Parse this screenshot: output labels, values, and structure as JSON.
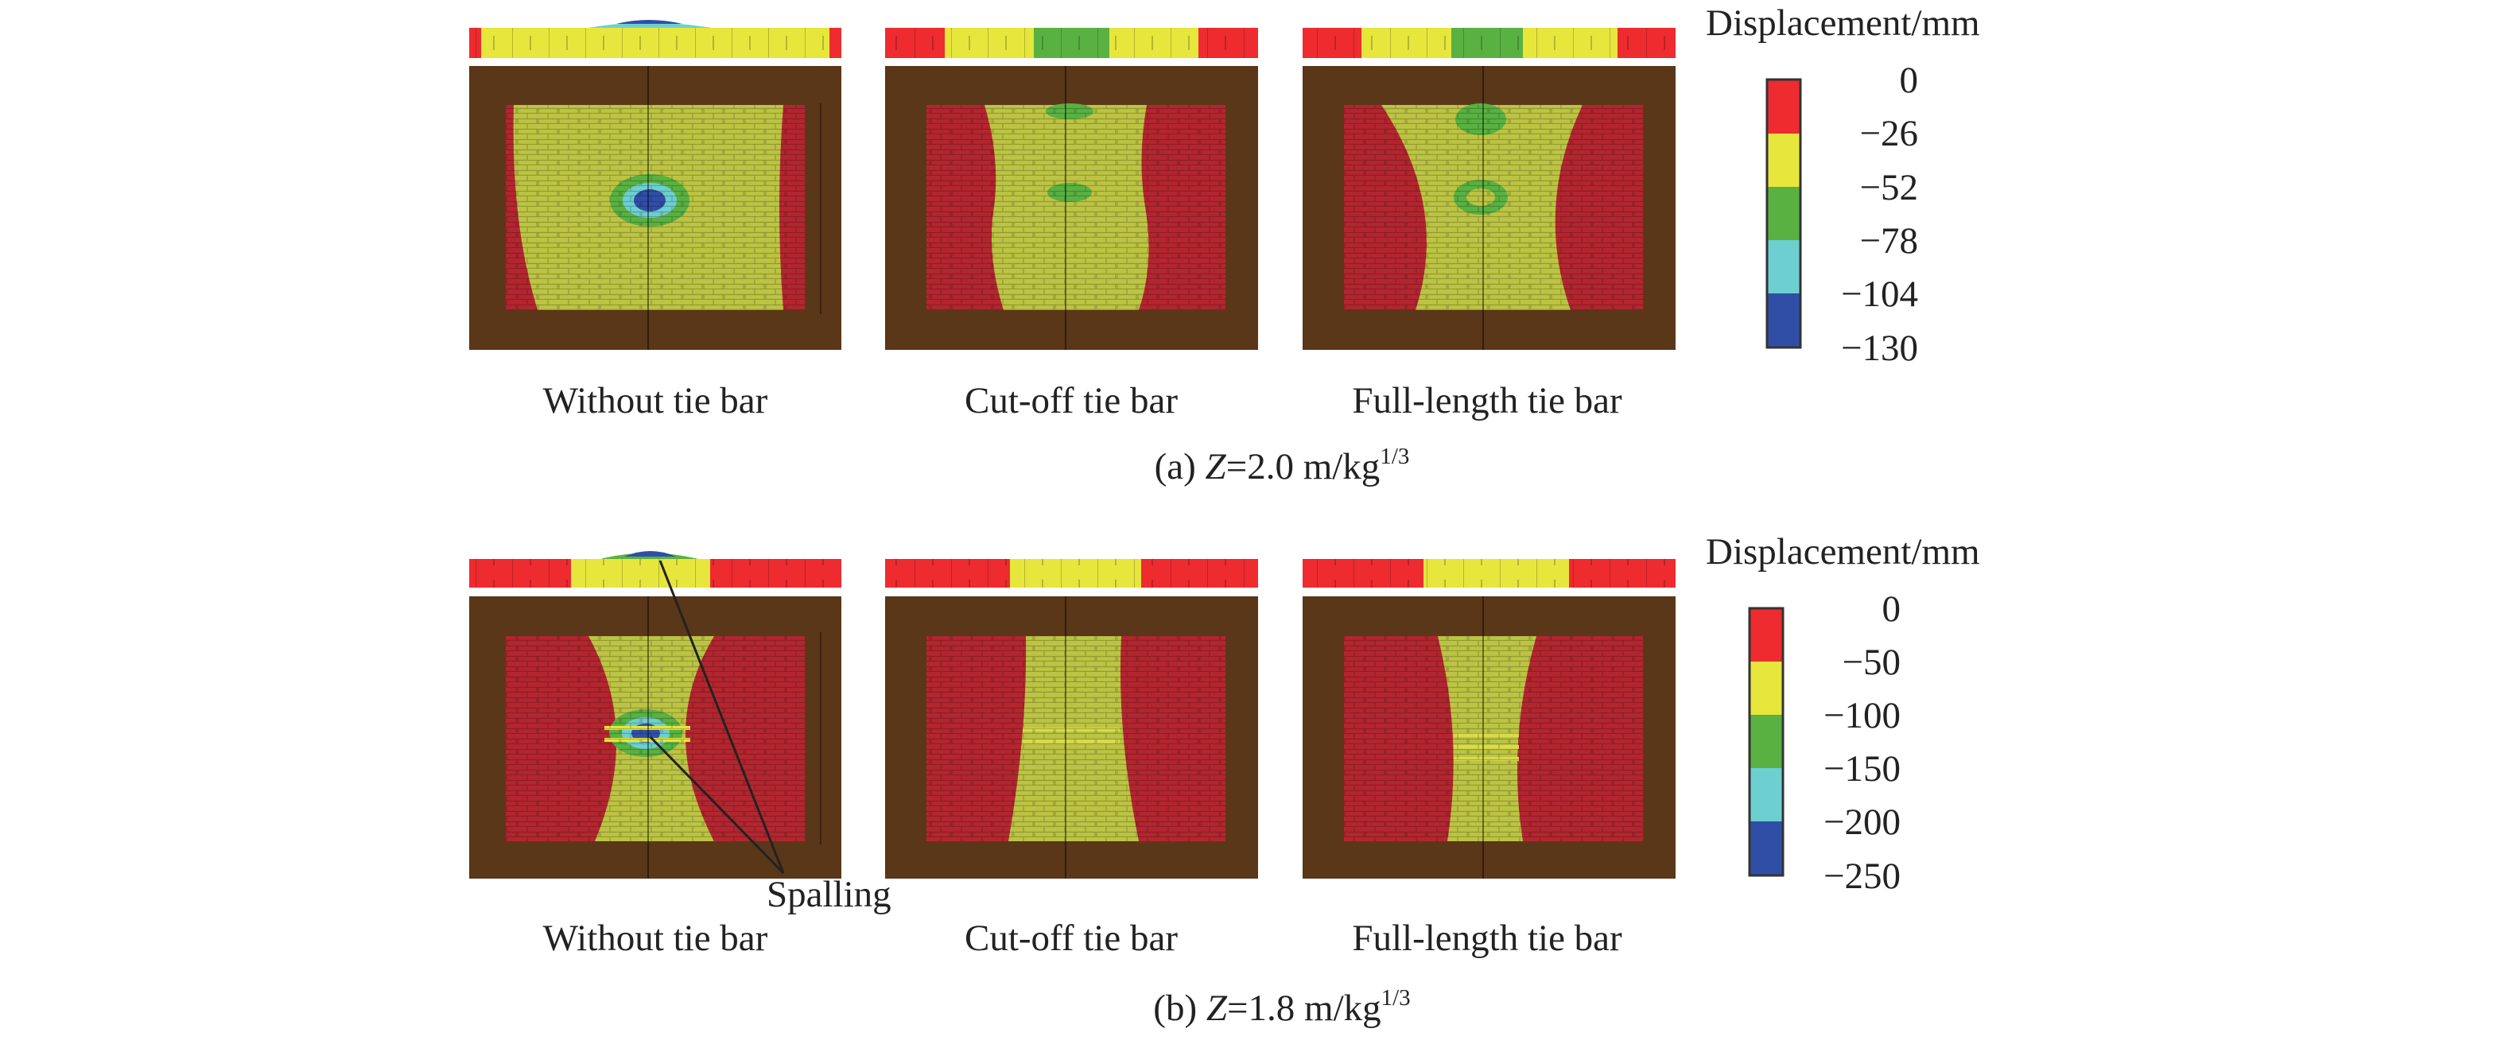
{
  "figure": {
    "panels": [
      {
        "caption_prefix": "(a) ",
        "caption_var": "Z",
        "caption_value": "=2.0 m/kg",
        "caption_exp": "1/3",
        "case_labels": [
          "Without tie bar",
          "Cut-off tie bar",
          "Full-length tie bar"
        ],
        "legend_title": "Displacement/mm",
        "legend_ticks": [
          "0",
          "−26",
          "−52",
          "−78",
          "−104",
          "−130"
        ],
        "annotation": ""
      },
      {
        "caption_prefix": "(b) ",
        "caption_var": "Z",
        "caption_value": "=1.8 m/kg",
        "caption_exp": "1/3",
        "case_labels": [
          "Without tie bar",
          "Cut-off tie bar",
          "Full-length tie bar"
        ],
        "legend_title": "Displacement/mm",
        "legend_ticks": [
          "0",
          "−50",
          "−100",
          "−150",
          "−200",
          "−250"
        ],
        "annotation": "Spalling"
      }
    ],
    "colors": {
      "band_0": "#ee2b2f",
      "band_1": "#e7e63c",
      "band_2": "#59b142",
      "band_3": "#6ecfd0",
      "band_4": "#2f4fa6",
      "contour_red": "#b3262f",
      "contour_yellow": "#bcc443",
      "frame_brown": "#5a3718",
      "text": "#222222"
    }
  }
}
